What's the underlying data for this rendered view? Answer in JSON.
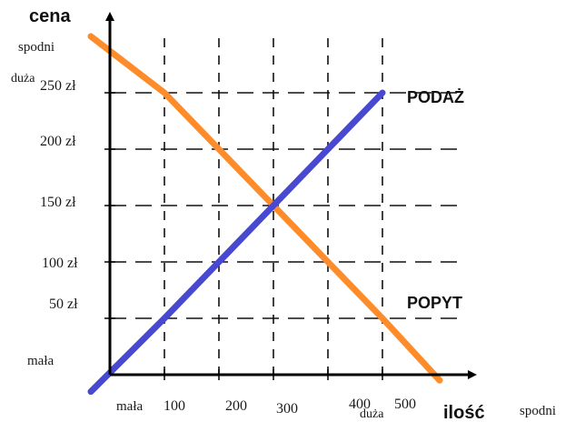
{
  "chart_data": {
    "type": "line",
    "ylabel": "cena",
    "xlabel": "ilość",
    "y_top_note_1": "spodni",
    "y_top_note_2": "duża",
    "y_bottom_note": "mała",
    "x_start_note": "mała",
    "x_end_note": "duża",
    "x_right_note": "spodni",
    "y_ticks": [
      {
        "value": 50,
        "label": "50 zł"
      },
      {
        "value": 100,
        "label": "100 zł"
      },
      {
        "value": 150,
        "label": "150 zł"
      },
      {
        "value": 200,
        "label": "200 zł"
      },
      {
        "value": 250,
        "label": "250 zł"
      }
    ],
    "x_ticks": [
      {
        "value": 100,
        "label": "100"
      },
      {
        "value": 200,
        "label": "200"
      },
      {
        "value": 300,
        "label": "300"
      },
      {
        "value": 400,
        "label": "400"
      },
      {
        "value": 500,
        "label": "500"
      }
    ],
    "xlim": [
      -35,
      630
    ],
    "ylim": [
      -30,
      290
    ],
    "grid": "dashed",
    "series": [
      {
        "name": "PODAŻ",
        "color": "#4848d0",
        "x": [
          -35,
          100,
          200,
          300,
          400,
          500
        ],
        "y": [
          -15,
          50,
          100,
          150,
          200,
          250
        ]
      },
      {
        "name": "POPYT",
        "color": "#ff8c2a",
        "x": [
          -35,
          100,
          200,
          300,
          400,
          500,
          605
        ],
        "y": [
          300,
          250,
          200,
          150,
          100,
          50,
          -5
        ]
      }
    ]
  }
}
